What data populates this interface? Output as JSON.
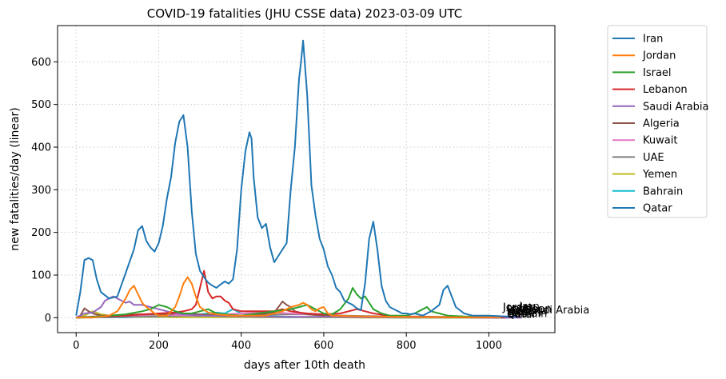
{
  "chart_data": {
    "type": "line",
    "title": "COVID-19 fatalities (JHU CSSE data) 2023-03-09 UTC",
    "xlabel": "days after 10th death",
    "ylabel": "new fatalities/day (linear)",
    "xlim": [
      -45,
      1160
    ],
    "ylim": [
      -35,
      685
    ],
    "xticks": [
      0,
      200,
      400,
      600,
      800,
      1000
    ],
    "yticks": [
      0,
      100,
      200,
      300,
      400,
      500,
      600
    ],
    "grid": true,
    "legend_position": "outside-right",
    "series": [
      {
        "name": "Iran",
        "color": "#1f77b4",
        "end_label": "Iran",
        "x": [
          0,
          10,
          20,
          30,
          40,
          50,
          60,
          80,
          100,
          120,
          140,
          150,
          160,
          170,
          180,
          190,
          200,
          210,
          220,
          230,
          240,
          250,
          260,
          270,
          280,
          290,
          300,
          310,
          320,
          330,
          340,
          350,
          360,
          370,
          380,
          390,
          400,
          410,
          420,
          425,
          430,
          440,
          450,
          460,
          470,
          480,
          490,
          500,
          510,
          520,
          530,
          540,
          545,
          550,
          560,
          570,
          580,
          590,
          600,
          610,
          620,
          630,
          640,
          650,
          660,
          670,
          680,
          690,
          700,
          710,
          720,
          730,
          740,
          750,
          760,
          770,
          780,
          790,
          800,
          810,
          820,
          840,
          860,
          880,
          890,
          900,
          910,
          920,
          940,
          960,
          980,
          1000,
          1040,
          1070
        ],
        "y": [
          5,
          60,
          135,
          140,
          135,
          90,
          60,
          45,
          50,
          105,
          160,
          205,
          215,
          180,
          165,
          155,
          175,
          215,
          280,
          330,
          410,
          460,
          475,
          400,
          250,
          150,
          110,
          95,
          82,
          75,
          70,
          78,
          85,
          80,
          90,
          160,
          300,
          390,
          435,
          420,
          330,
          235,
          210,
          220,
          165,
          130,
          145,
          160,
          175,
          300,
          400,
          560,
          600,
          650,
          520,
          310,
          240,
          185,
          160,
          120,
          100,
          70,
          60,
          40,
          35,
          30,
          22,
          18,
          80,
          185,
          225,
          160,
          75,
          40,
          25,
          20,
          15,
          10,
          10,
          8,
          10,
          5,
          15,
          30,
          65,
          75,
          50,
          25,
          10,
          5,
          5,
          5,
          3,
          2
        ]
      },
      {
        "name": "Jordan",
        "color": "#ff7f0e",
        "end_label": "Jordan",
        "x": [
          0,
          40,
          80,
          100,
          120,
          130,
          140,
          150,
          160,
          170,
          180,
          190,
          200,
          220,
          240,
          250,
          260,
          270,
          280,
          290,
          300,
          320,
          340,
          380,
          420,
          460,
          500,
          520,
          540,
          550,
          560,
          570,
          580,
          590,
          600,
          610,
          620,
          700,
          800,
          900,
          1000,
          1030
        ],
        "y": [
          0,
          0,
          5,
          15,
          45,
          65,
          75,
          55,
          35,
          25,
          18,
          10,
          5,
          5,
          25,
          50,
          80,
          95,
          80,
          50,
          25,
          12,
          8,
          5,
          5,
          5,
          15,
          25,
          30,
          35,
          30,
          20,
          15,
          22,
          25,
          10,
          5,
          3,
          2,
          1,
          1,
          1
        ]
      },
      {
        "name": "Israel",
        "color": "#2ca02c",
        "end_label": "Israel",
        "x": [
          0,
          40,
          80,
          120,
          160,
          180,
          200,
          220,
          240,
          260,
          280,
          300,
          320,
          340,
          360,
          400,
          440,
          480,
          520,
          540,
          560,
          580,
          600,
          620,
          640,
          660,
          670,
          680,
          690,
          700,
          720,
          740,
          760,
          780,
          800,
          820,
          840,
          850,
          860,
          880,
          900,
          940,
          1000,
          1030
        ],
        "y": [
          0,
          2,
          5,
          8,
          15,
          20,
          30,
          25,
          15,
          10,
          10,
          15,
          20,
          10,
          8,
          5,
          10,
          15,
          20,
          25,
          30,
          20,
          10,
          8,
          20,
          45,
          70,
          55,
          45,
          50,
          20,
          10,
          5,
          5,
          5,
          10,
          20,
          25,
          15,
          10,
          5,
          3,
          2,
          1
        ]
      },
      {
        "name": "Lebanon",
        "color": "#d62728",
        "end_label": "Lebanon",
        "x": [
          0,
          40,
          80,
          120,
          160,
          200,
          240,
          260,
          280,
          290,
          300,
          305,
          310,
          320,
          330,
          340,
          350,
          360,
          370,
          380,
          400,
          440,
          480,
          500,
          520,
          540,
          560,
          600,
          640,
          680,
          700,
          720,
          760,
          800,
          850,
          900,
          1000,
          1040
        ],
        "y": [
          0,
          2,
          3,
          5,
          8,
          10,
          12,
          15,
          20,
          30,
          70,
          90,
          110,
          60,
          45,
          50,
          50,
          40,
          35,
          20,
          15,
          15,
          15,
          20,
          15,
          12,
          10,
          8,
          10,
          20,
          15,
          10,
          5,
          3,
          2,
          1,
          1,
          1
        ]
      },
      {
        "name": "Saudi Arabia",
        "color": "#9467bd",
        "end_label": "Saudi Arabia",
        "x": [
          0,
          20,
          40,
          60,
          70,
          80,
          90,
          100,
          110,
          120,
          130,
          140,
          160,
          180,
          200,
          220,
          240,
          260,
          300,
          400,
          500,
          600,
          700,
          800,
          900,
          1000,
          1080
        ],
        "y": [
          0,
          10,
          12,
          25,
          40,
          45,
          50,
          45,
          40,
          35,
          38,
          30,
          30,
          25,
          20,
          15,
          10,
          8,
          5,
          3,
          2,
          2,
          1,
          1,
          1,
          0,
          0
        ]
      },
      {
        "name": "Algeria",
        "color": "#8c564b",
        "end_label": "Algeria",
        "x": [
          0,
          10,
          20,
          30,
          40,
          60,
          100,
          150,
          200,
          250,
          300,
          350,
          400,
          440,
          480,
          490,
          500,
          510,
          520,
          530,
          560,
          600,
          700,
          800,
          900,
          1000,
          1050
        ],
        "y": [
          0,
          5,
          22,
          15,
          10,
          5,
          5,
          8,
          8,
          10,
          8,
          5,
          5,
          8,
          12,
          25,
          38,
          30,
          25,
          15,
          8,
          5,
          3,
          2,
          1,
          0,
          0
        ]
      },
      {
        "name": "Kuwait",
        "color": "#e377c2",
        "end_label": "Kuwait",
        "x": [
          0,
          40,
          80,
          120,
          160,
          200,
          240,
          280,
          320,
          360,
          400,
          440,
          480,
          520,
          560,
          600,
          700,
          800,
          900,
          1000,
          1040
        ],
        "y": [
          0,
          3,
          5,
          5,
          6,
          8,
          6,
          5,
          5,
          8,
          10,
          12,
          12,
          10,
          8,
          5,
          3,
          2,
          1,
          0,
          0
        ]
      },
      {
        "name": "UAE",
        "color": "#7f7f7f",
        "end_label": "UAE",
        "x": [
          0,
          40,
          80,
          120,
          160,
          200,
          240,
          280,
          320,
          360,
          400,
          440,
          480,
          520,
          560,
          600,
          700,
          800,
          900,
          1000,
          1040
        ],
        "y": [
          0,
          1,
          2,
          2,
          3,
          3,
          4,
          5,
          5,
          4,
          5,
          6,
          7,
          8,
          8,
          6,
          4,
          3,
          2,
          1,
          1
        ]
      },
      {
        "name": "Yemen",
        "color": "#bcbd22",
        "end_label": "Yemen",
        "x": [
          0,
          20,
          30,
          40,
          60,
          80,
          100,
          140,
          200,
          240,
          280,
          320,
          360,
          400,
          440,
          480,
          520,
          560,
          600,
          700,
          800,
          900,
          1000,
          1040
        ],
        "y": [
          0,
          5,
          10,
          15,
          8,
          5,
          3,
          2,
          2,
          1,
          1,
          1,
          1,
          1,
          1,
          1,
          2,
          1,
          1,
          0,
          0,
          0,
          0,
          0
        ]
      },
      {
        "name": "Bahrain",
        "color": "#17becf",
        "end_label": "Bahrain",
        "x": [
          0,
          80,
          160,
          200,
          240,
          280,
          300,
          320,
          340,
          360,
          370,
          380,
          390,
          400,
          420,
          440,
          480,
          520,
          560,
          600,
          700,
          800,
          900,
          1000,
          1040
        ],
        "y": [
          0,
          1,
          2,
          3,
          3,
          5,
          8,
          10,
          12,
          10,
          15,
          20,
          15,
          10,
          8,
          5,
          3,
          2,
          1,
          1,
          1,
          0,
          0,
          0,
          0
        ]
      },
      {
        "name": "Qatar",
        "color": "#1f77b4",
        "end_label": "Qatar",
        "x": [
          0,
          40,
          80,
          120,
          160,
          200,
          240,
          280,
          320,
          360,
          400,
          440,
          480,
          520,
          560,
          600,
          700,
          800,
          900,
          1000,
          1040
        ],
        "y": [
          0,
          1,
          1,
          1,
          2,
          2,
          2,
          2,
          3,
          2,
          2,
          1,
          1,
          1,
          1,
          1,
          1,
          0,
          0,
          0,
          0
        ]
      }
    ]
  }
}
